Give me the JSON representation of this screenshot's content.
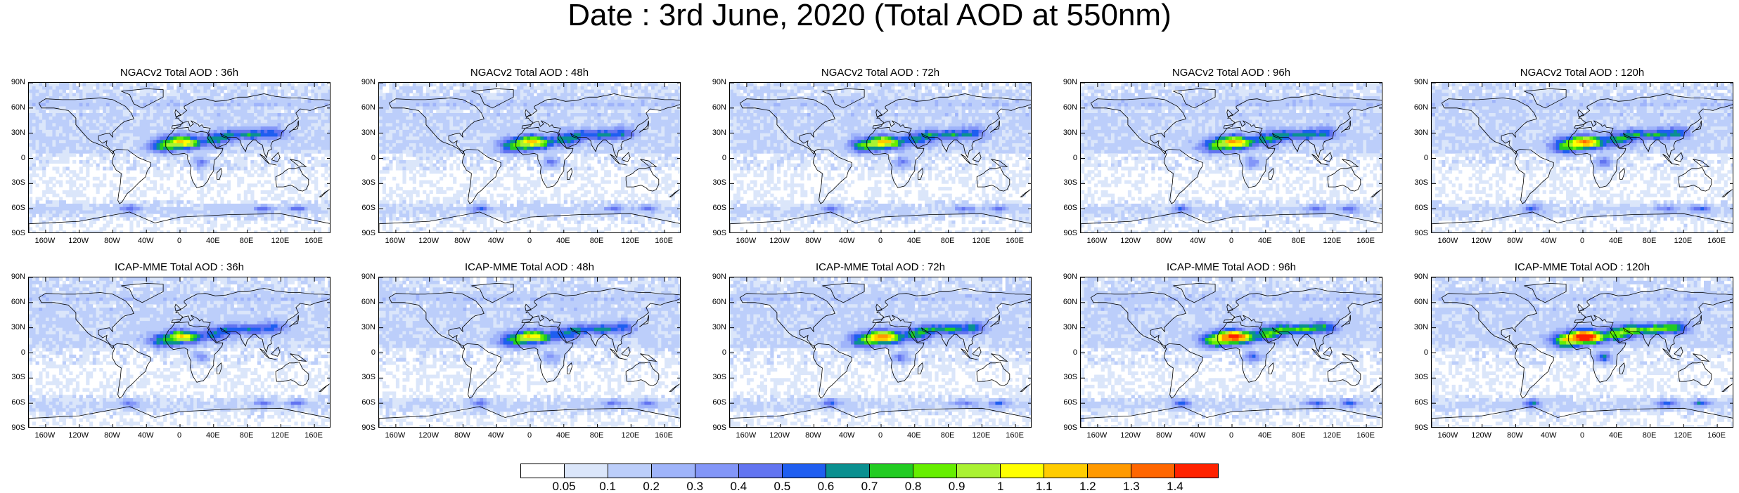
{
  "title": "Date : 3rd June, 2020 (Total AOD at 550nm)",
  "lat_ticks": [
    "90N",
    "60N",
    "30N",
    "0",
    "30S",
    "60S",
    "90S"
  ],
  "lon_ticks": [
    "160W",
    "120W",
    "80W",
    "40W",
    "0",
    "40E",
    "80E",
    "120E",
    "160E"
  ],
  "lon_tick_values": [
    -160,
    -120,
    -80,
    -40,
    0,
    40,
    80,
    120,
    160
  ],
  "lat_tick_values": [
    90,
    60,
    30,
    0,
    -30,
    -60,
    -90
  ],
  "map_extent": {
    "lon": [
      -180,
      180
    ],
    "lat": [
      -90,
      90
    ]
  },
  "panels": [
    {
      "model": "NGACv2",
      "title": "NGACv2 Total AOD : 36h",
      "lead": "36h",
      "intensity": 1.0
    },
    {
      "model": "NGACv2",
      "title": "NGACv2 Total AOD : 48h",
      "lead": "48h",
      "intensity": 1.0
    },
    {
      "model": "NGACv2",
      "title": "NGACv2 Total AOD : 72h",
      "lead": "72h",
      "intensity": 1.0
    },
    {
      "model": "NGACv2",
      "title": "NGACv2 Total AOD : 96h",
      "lead": "96h",
      "intensity": 1.05
    },
    {
      "model": "NGACv2",
      "title": "NGACv2 Total AOD : 120h",
      "lead": "120h",
      "intensity": 1.1
    },
    {
      "model": "ICAP-MME",
      "title": "ICAP-MME Total AOD : 36h",
      "lead": "36h",
      "intensity": 0.9
    },
    {
      "model": "ICAP-MME",
      "title": "ICAP-MME Total AOD : 48h",
      "lead": "48h",
      "intensity": 0.95
    },
    {
      "model": "ICAP-MME",
      "title": "ICAP-MME Total AOD : 72h",
      "lead": "72h",
      "intensity": 1.1
    },
    {
      "model": "ICAP-MME",
      "title": "ICAP-MME Total AOD : 96h",
      "lead": "96h",
      "intensity": 1.3
    },
    {
      "model": "ICAP-MME",
      "title": "ICAP-MME Total AOD : 120h",
      "lead": "120h",
      "intensity": 1.45
    }
  ],
  "colorbar": {
    "labels": [
      "0.05",
      "0.1",
      "0.2",
      "0.3",
      "0.4",
      "0.5",
      "0.6",
      "0.7",
      "0.8",
      "0.9",
      "1",
      "1.1",
      "1.2",
      "1.3",
      "1.4"
    ],
    "colors": [
      "#ffffff",
      "#dbe6fa",
      "#bccefa",
      "#9fb4fa",
      "#8396f8",
      "#6274f0",
      "#1f5ef0",
      "#0a9090",
      "#22cc22",
      "#66ee00",
      "#aaf232",
      "#ffff00",
      "#ffcc00",
      "#ff9900",
      "#ff6600",
      "#ff2200"
    ]
  }
}
